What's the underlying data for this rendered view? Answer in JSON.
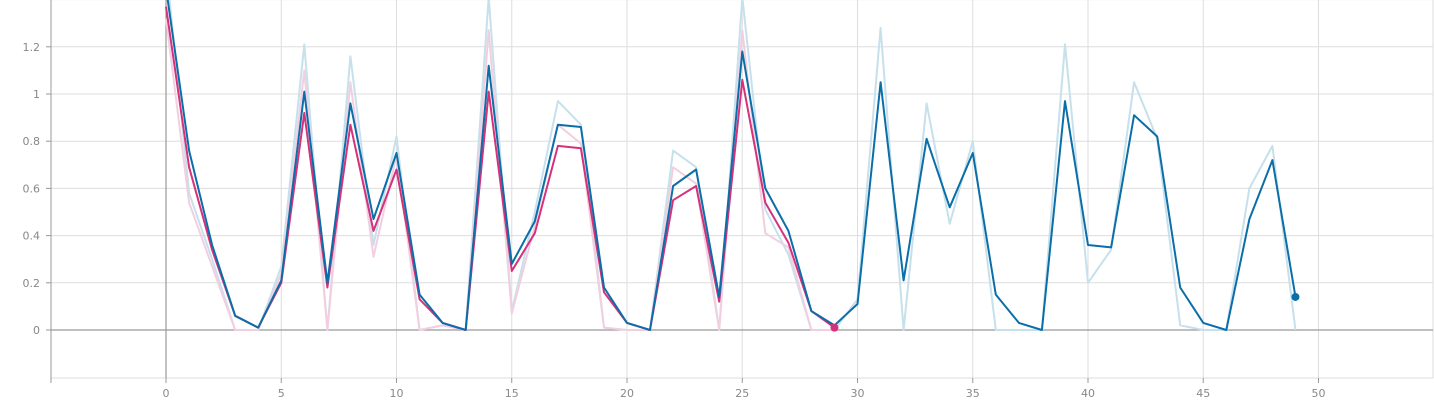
{
  "chart_data": {
    "type": "line",
    "title": "",
    "xlabel": "",
    "ylabel": "",
    "xlim": [
      -5,
      55
    ],
    "ylim": [
      -0.2,
      1.4
    ],
    "x_ticks": [
      0,
      5,
      10,
      15,
      20,
      25,
      30,
      35,
      40,
      45,
      50
    ],
    "y_ticks": [
      0,
      0.2,
      0.4,
      0.6,
      0.8,
      1,
      1.2
    ],
    "x_tick_labels": [
      "0",
      "5",
      "10",
      "15",
      "20",
      "25",
      "30",
      "35",
      "40",
      "45",
      "50"
    ],
    "y_tick_labels": [
      "0",
      "0.2",
      "0.4",
      "0.6",
      "0.8",
      "1",
      "1.2"
    ],
    "grid": true,
    "legend": "none",
    "series": [
      {
        "role": "raw",
        "color": "#c6e0ec",
        "x": [
          0,
          1,
          2,
          3,
          4,
          5,
          6,
          7,
          8,
          9,
          10,
          11,
          12,
          13,
          14,
          15,
          16,
          17,
          18,
          19,
          20,
          21,
          22,
          23,
          24,
          25,
          26,
          27,
          28,
          29,
          30,
          31,
          32,
          33,
          34,
          35,
          36,
          37,
          38,
          39,
          40,
          41,
          42,
          43,
          44,
          45,
          46,
          47,
          48,
          49
        ],
        "y": [
          1.55,
          0.58,
          0.3,
          0.0,
          0.0,
          0.27,
          1.21,
          0.0,
          1.16,
          0.36,
          0.82,
          0.0,
          0.02,
          0.0,
          1.41,
          0.08,
          0.5,
          0.97,
          0.87,
          0.01,
          0.0,
          0.0,
          0.76,
          0.69,
          0.0,
          1.41,
          0.51,
          0.32,
          0.0,
          0.0,
          0.13,
          1.28,
          0.0,
          0.96,
          0.45,
          0.8,
          0.0,
          0.0,
          0.0,
          1.21,
          0.2,
          0.34,
          1.05,
          0.81,
          0.02,
          0.0,
          0.0,
          0.6,
          0.78,
          0.0
        ]
      },
      {
        "role": "raw",
        "color": "#f2cfe0",
        "x": [
          0,
          1,
          2,
          3,
          4,
          5,
          6,
          7,
          8,
          9,
          10,
          11,
          12,
          13,
          14,
          15,
          16,
          17,
          18,
          19,
          20,
          21,
          22,
          23,
          24,
          25,
          26,
          27,
          28,
          29
        ],
        "y": [
          1.32,
          0.54,
          0.27,
          0.0,
          0.0,
          0.24,
          1.1,
          0.0,
          1.05,
          0.31,
          0.74,
          0.0,
          0.02,
          0.0,
          1.27,
          0.07,
          0.44,
          0.87,
          0.79,
          0.01,
          0.0,
          0.0,
          0.69,
          0.62,
          0.0,
          1.27,
          0.41,
          0.35,
          0.0,
          0.0
        ]
      },
      {
        "role": "smoothed",
        "color": "#d6317b",
        "x": [
          0,
          1,
          2,
          3,
          4,
          5,
          6,
          7,
          8,
          9,
          10,
          11,
          12,
          13,
          14,
          15,
          16,
          17,
          18,
          19,
          20,
          21,
          22,
          23,
          24,
          25,
          26,
          27,
          28,
          29
        ],
        "y": [
          1.37,
          0.69,
          0.34,
          0.06,
          0.01,
          0.2,
          0.92,
          0.18,
          0.87,
          0.42,
          0.68,
          0.13,
          0.03,
          0.0,
          1.01,
          0.25,
          0.41,
          0.78,
          0.77,
          0.16,
          0.03,
          0.0,
          0.55,
          0.61,
          0.12,
          1.06,
          0.54,
          0.37,
          0.08,
          0.01
        ]
      },
      {
        "role": "smoothed",
        "color": "#0b6ea8",
        "x": [
          0,
          1,
          2,
          3,
          4,
          5,
          6,
          7,
          8,
          9,
          10,
          11,
          12,
          13,
          14,
          15,
          16,
          17,
          18,
          19,
          20,
          21,
          22,
          23,
          24,
          25,
          26,
          27,
          28,
          29,
          30,
          31,
          32,
          33,
          34,
          35,
          36,
          37,
          38,
          39,
          40,
          41,
          42,
          43,
          44,
          45,
          46,
          47,
          48,
          49
        ],
        "y": [
          1.45,
          0.76,
          0.36,
          0.06,
          0.01,
          0.21,
          1.01,
          0.2,
          0.96,
          0.47,
          0.75,
          0.15,
          0.03,
          0.0,
          1.12,
          0.28,
          0.46,
          0.87,
          0.86,
          0.18,
          0.03,
          0.0,
          0.61,
          0.68,
          0.14,
          1.18,
          0.6,
          0.42,
          0.08,
          0.02,
          0.11,
          1.05,
          0.21,
          0.81,
          0.52,
          0.75,
          0.15,
          0.03,
          0.0,
          0.97,
          0.36,
          0.35,
          0.91,
          0.82,
          0.18,
          0.03,
          0.0,
          0.47,
          0.72,
          0.14
        ]
      }
    ],
    "end_markers": [
      {
        "x": 29,
        "y": 0.01,
        "color": "#d6317b"
      },
      {
        "x": 49,
        "y": 0.14,
        "color": "#0b6ea8"
      }
    ]
  }
}
